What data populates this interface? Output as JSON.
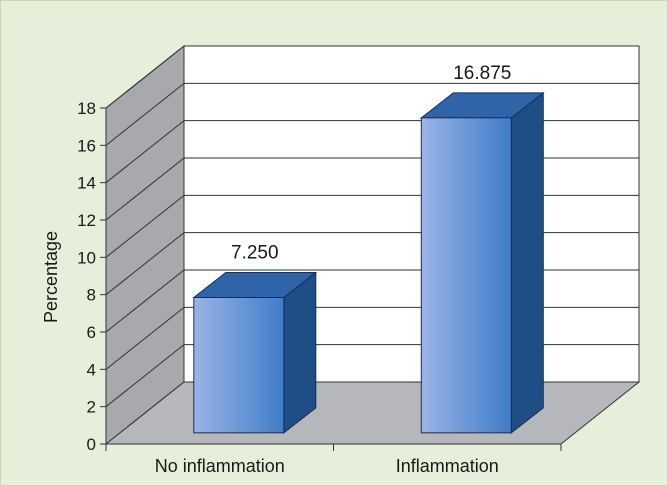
{
  "chart_data": {
    "type": "bar",
    "categories": [
      "No inflammation",
      "Inflammation"
    ],
    "values": [
      7.25,
      16.875
    ],
    "value_labels": [
      "7.250",
      "16.875"
    ],
    "title": "",
    "xlabel": "",
    "ylabel": "Percentage",
    "ylim": [
      0,
      18
    ],
    "yticks": [
      "0",
      "2",
      "4",
      "6",
      "8",
      "10",
      "12",
      "14",
      "16",
      "18"
    ],
    "grid": true,
    "legend": "none",
    "three_d": true,
    "colors": {
      "background": "#e6efd9",
      "back_wall": "#ffffff",
      "side_wall": "#a7a9ac",
      "floor": "#b5b7ba",
      "gridline": "#333333",
      "bar_front_light": "#9ab4e6",
      "bar_front_dark": "#3f7cc8",
      "bar_side": "#1f4d86",
      "bar_top": "#2f65a8"
    }
  }
}
